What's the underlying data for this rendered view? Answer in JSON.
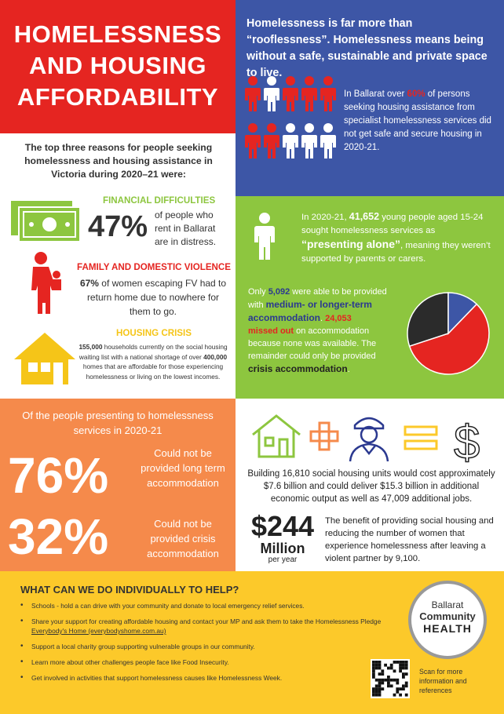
{
  "title": {
    "line1": "HOMELESSNESS",
    "line2": "AND HOUSING",
    "line3": "AFFORDABILITY"
  },
  "blue": {
    "heading": "Homelessness is far more than “rooflessness”. Homelessness means being without a safe, sustainable and private space to live.",
    "body_pre": "In Ballarat over ",
    "body_pct": "60%",
    "body_post": " of persons seeking housing assistance from specialist homelessness services did not get safe and secure housing in 2020-21."
  },
  "reasons": {
    "intro": "The top three reasons for people seeking homelessness and housing assistance in Victoria during 2020–21 were:",
    "financial_head": "FINANCIAL DIFFICULTIES",
    "financial_pct": "47%",
    "financial_text": "of people who rent in Ballarat are in distress.",
    "fv_head": "FAMILY AND DOMESTIC VIOLENCE",
    "fv_pct": "67%",
    "fv_text": " of women escaping FV had to return home due to nowhere for them to go.",
    "crisis_head": "HOUSING CRISIS",
    "crisis_n1": "155,000",
    "crisis_t1": " households currently on the social housing waiting list with a national shortage of over ",
    "crisis_n2": "400,000",
    "crisis_t2": " homes that are affordable for those experiencing homelessness or living on the lowest incomes."
  },
  "green": {
    "p1_a": "In 2020-21, ",
    "p1_num": "41,652",
    "p1_b": " young people aged 15-24 sought homelessness services as ",
    "p1_q": "“presenting alone”",
    "p1_c": ", meaning they weren’t supported by parents or carers.",
    "p2_a": "Only ",
    "p2_num": "5,092",
    "p2_b": " were able to be provided with ",
    "p2_mlt": "medium- or longer-term accommodation",
    "p2_c": ". ",
    "p2_num2": "24,053",
    "p2_missed": "missed out",
    "p2_d": " on accommodation because none was available. The remainder could only be provided ",
    "p2_crisis": "crisis accommodation",
    "p2_e": "."
  },
  "chart_data": {
    "type": "pie",
    "categories": [
      "missed out",
      "crisis accommodation",
      "medium- or longer-term accommodation"
    ],
    "values": [
      24053,
      12507,
      5092
    ],
    "colors": [
      "#e52521",
      "#2b2b2b",
      "#3d56a6"
    ]
  },
  "orange": {
    "intro": "Of the people presenting to homelessness services in 2020-21",
    "pct1": "76%",
    "desc1": "Could not be provided long term accommodation",
    "pct2": "32%",
    "desc2": "Could not be provided crisis accommodation"
  },
  "economics": {
    "cost_text": "Building 16,810 social housing units would cost approximately $7.6 billion and could deliver $15.3 billion in additional economic output as well as 47,009 additional jobs.",
    "big_amount": "$244",
    "big_unit": "Million",
    "big_period": "per year",
    "benefit_text": "The benefit of providing social housing and reducing the number of women that experience homelessness after leaving a violent partner by 9,100."
  },
  "help": {
    "heading": "WHAT CAN WE DO INDIVIDUALLY TO HELP?",
    "items": [
      "Schools - hold a can drive with your community and donate to local emergency relief services.",
      "Share your support for creating affordable housing and contact your MP and ask them to take the Homelessness Pledge ",
      "Support a local charity group supporting vulnerable groups in our community.",
      "Learn more about other challenges people face like Food Insecurity.",
      "Get involved in activities that support homelessness causes like Homelessness Week."
    ],
    "pledge_link": "Everybody's Home (everybodyshome.com.au)",
    "logo_line1": "Ballarat",
    "logo_line2": "Community",
    "logo_line3": "HEALTH",
    "qr_caption": "Scan for more information and references"
  },
  "colors": {
    "red": "#e52521",
    "blue": "#3d56a6",
    "green": "#8dc63f",
    "orange": "#f58a4b",
    "yellow": "#fcc92a",
    "navy": "#2b3990"
  },
  "icons": [
    "person-icon",
    "cash-icon",
    "mother-child-icon",
    "house-icon",
    "plus-icon",
    "worker-icon",
    "equals-icon",
    "dollar-icon",
    "qr-code-icon"
  ]
}
